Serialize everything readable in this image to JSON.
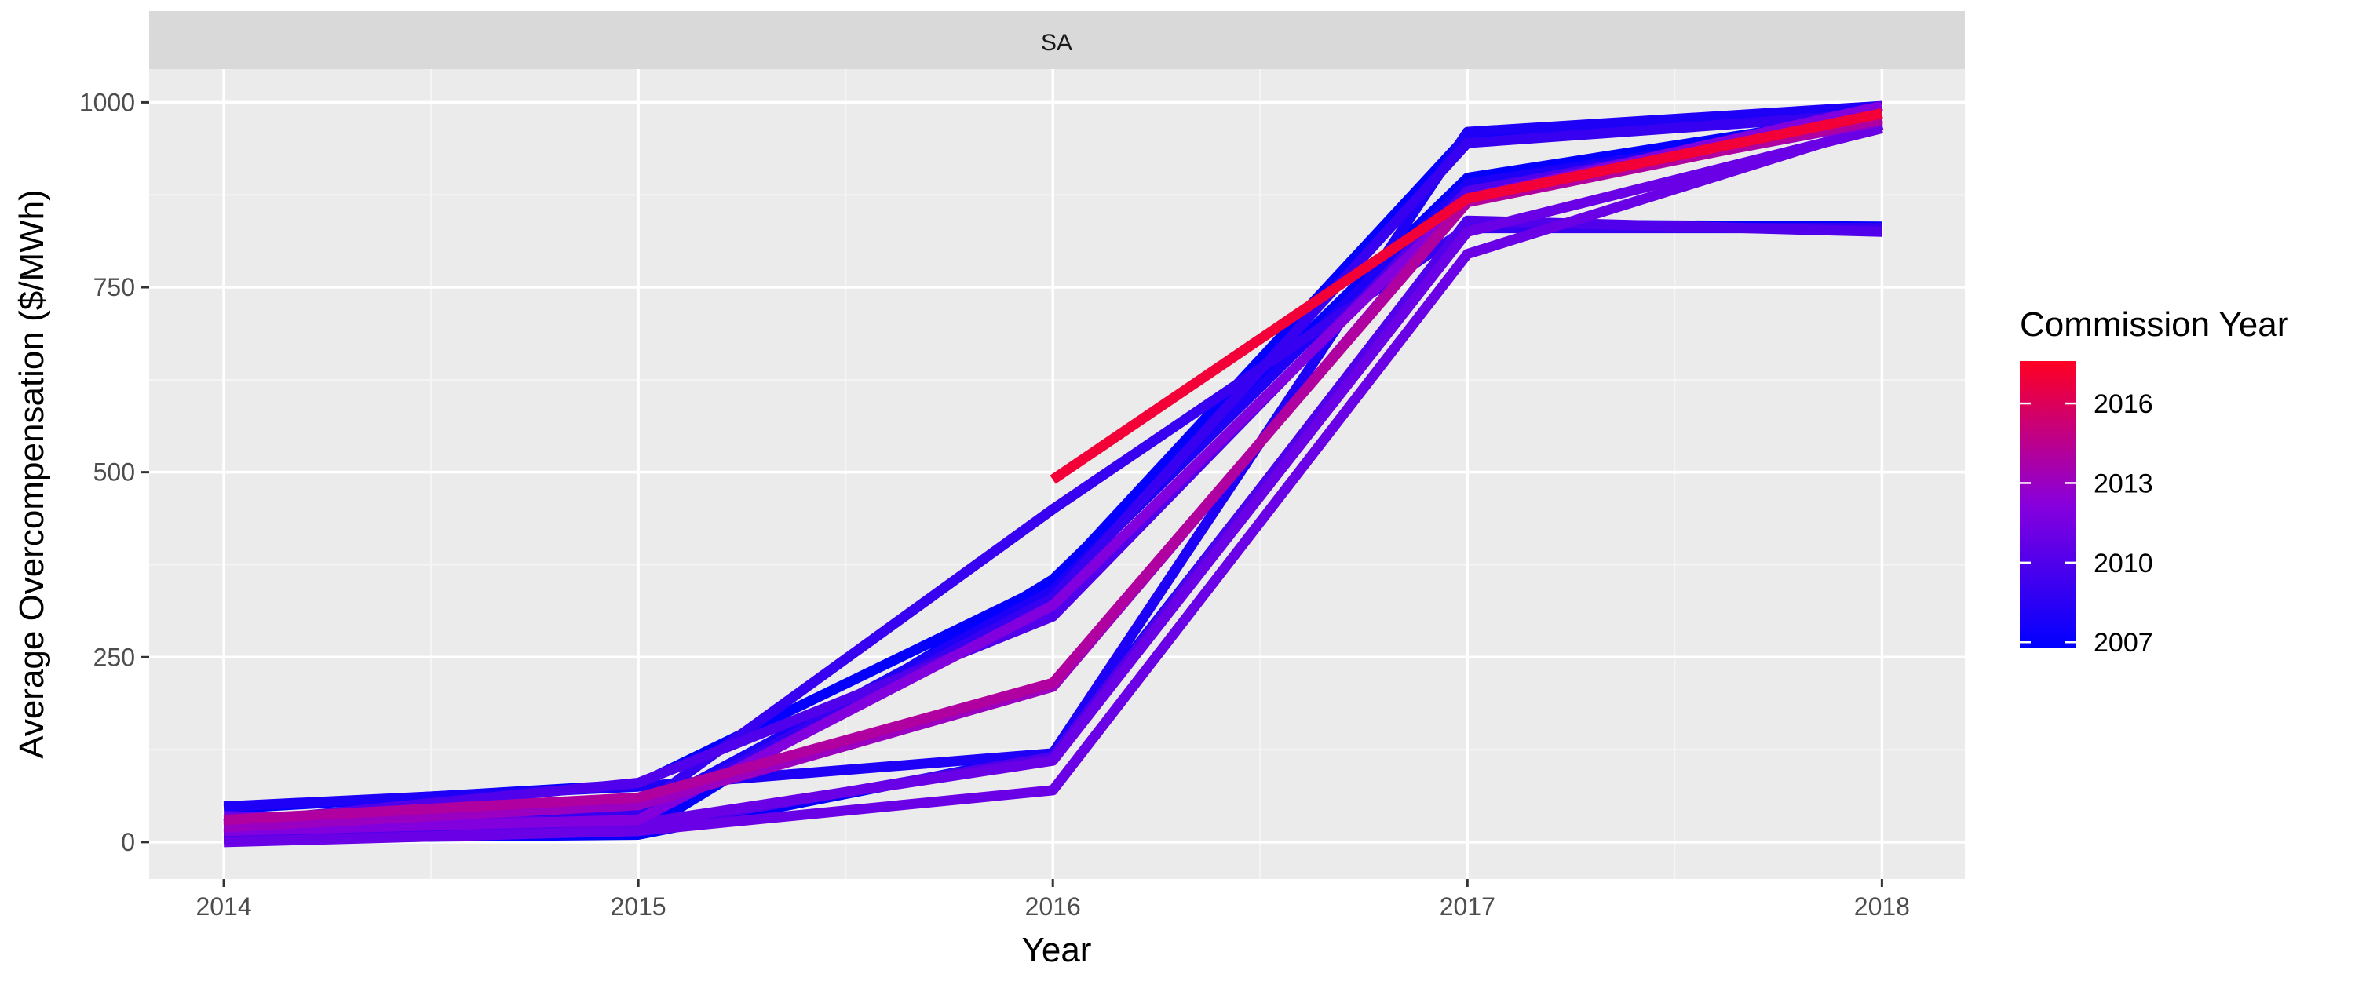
{
  "chart_data": {
    "type": "line",
    "facet_label": "SA",
    "xlabel": "Year",
    "ylabel": "Average Overcompensation ($/MWh)",
    "x": [
      2014,
      2015,
      2016,
      2017,
      2018
    ],
    "xlim": [
      2013.82,
      2018.2
    ],
    "ylim": [
      -50,
      1045
    ],
    "x_ticks": [
      2014,
      2015,
      2016,
      2017,
      2018
    ],
    "y_ticks": [
      0,
      250,
      500,
      750,
      1000
    ],
    "grid": true,
    "legend": {
      "title": "Commission Year",
      "position": "right",
      "type": "colorbar",
      "ticks": [
        2007,
        2010,
        2013,
        2016
      ],
      "range": [
        2006.8,
        2017.6
      ],
      "colors": [
        "#0000ff",
        "#ff0022"
      ]
    },
    "series": [
      {
        "commission_year": 2007,
        "values": [
          5,
          10,
          120,
          835,
          832
        ]
      },
      {
        "commission_year": 2007,
        "values": [
          8,
          12,
          355,
          898,
          985
        ]
      },
      {
        "commission_year": 2007,
        "values": [
          45,
          78,
          350,
          955,
          990
        ]
      },
      {
        "commission_year": 2008,
        "values": [
          48,
          75,
          120,
          960,
          995
        ]
      },
      {
        "commission_year": 2008,
        "values": [
          10,
          40,
          340,
          890,
          975
        ]
      },
      {
        "commission_year": 2009,
        "values": [
          12,
          35,
          330,
          945,
          985
        ]
      },
      {
        "commission_year": 2009,
        "values": [
          20,
          45,
          450,
          830,
          830
        ]
      },
      {
        "commission_year": 2010,
        "values": [
          10,
          20,
          115,
          840,
          825
        ]
      },
      {
        "commission_year": 2010,
        "values": [
          25,
          80,
          305,
          880,
          980
        ]
      },
      {
        "commission_year": 2011,
        "values": [
          0,
          15,
          70,
          795,
          970
        ]
      },
      {
        "commission_year": 2011,
        "values": [
          35,
          25,
          110,
          825,
          965
        ]
      },
      {
        "commission_year": 2012,
        "values": [
          15,
          30,
          320,
          870,
          995
        ]
      },
      {
        "commission_year": 2013,
        "values": [
          20,
          50,
          210,
          870,
          975
        ]
      },
      {
        "commission_year": 2014,
        "values": [
          30,
          60,
          215,
          865,
          978
        ]
      },
      {
        "commission_year": 2017,
        "values": [
          null,
          null,
          490,
          870,
          985
        ]
      }
    ]
  }
}
